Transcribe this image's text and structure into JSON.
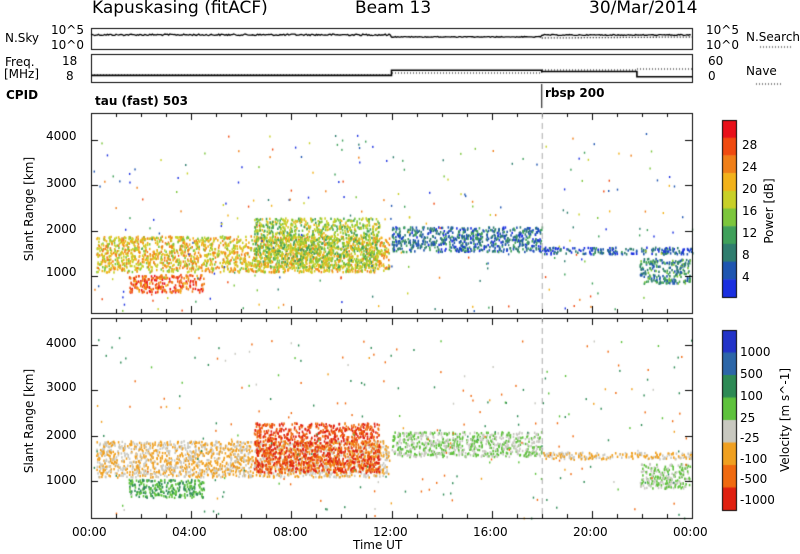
{
  "header": {
    "station": "Kapuskasing (fitACF)",
    "beam": "Beam 13",
    "date": "30/Mar/2014"
  },
  "top_panels": {
    "nsky_label": "N.Sky",
    "nsky_ticks": [
      "10^5",
      "10^0"
    ],
    "nsearch_label": "N.Search",
    "nsearch_ticks": [
      "10^5",
      "10^0"
    ],
    "freq_label": "Freq.",
    "freq_unit": "[MHz]",
    "freq_ticks": [
      "18",
      "8"
    ],
    "nave_label": "Nave",
    "nave_ticks": [
      "60",
      "0"
    ],
    "cpid_label": "CPID",
    "cpid_1": "tau (fast) 503",
    "cpid_2": "rbsp 200"
  },
  "axes": {
    "ylabel": "Slant Range [km]",
    "xlabel": "Time UT",
    "yticks": [
      "4000",
      "3000",
      "2000",
      "1000"
    ],
    "xticks": [
      "00:00",
      "04:00",
      "08:00",
      "12:00",
      "16:00",
      "20:00",
      "00:00"
    ]
  },
  "power_colorbar": {
    "label": "Power [dB]",
    "ticks": [
      "28",
      "24",
      "20",
      "16",
      "12",
      "8",
      "4"
    ],
    "colors": [
      "#e8101a",
      "#f04a10",
      "#f07f18",
      "#f2b21a",
      "#c8d028",
      "#7cc63c",
      "#3fa05a",
      "#2f7d6e",
      "#1e55b0",
      "#1a2fe0"
    ]
  },
  "velocity_colorbar": {
    "label": "Velocity [m s^-1]",
    "ticks": [
      "1000",
      "500",
      "100",
      "25",
      "-25",
      "-100",
      "-500",
      "-1000"
    ],
    "colors": [
      "#2233c8",
      "#2c66a8",
      "#2d8a55",
      "#5ec23c",
      "#c8c8c0",
      "#f0a020",
      "#f06a10",
      "#e02010"
    ]
  },
  "chart_data": {
    "type": "heatmap",
    "title": "Kapuskasing (fitACF) Beam 13 30/Mar/2014",
    "xlabel": "Time UT",
    "ylabel": "Slant Range [km]",
    "xlim": [
      0,
      24
    ],
    "ylim": [
      180,
      4600
    ],
    "xticks": [
      "00:00",
      "04:00",
      "08:00",
      "12:00",
      "16:00",
      "20:00",
      "00:00"
    ],
    "yticks": [
      1000,
      2000,
      3000,
      4000
    ],
    "frequency": {
      "unit": "MHz",
      "segments": [
        {
          "start": 0,
          "end": 12,
          "value": 10
        },
        {
          "start": 12,
          "end": 18,
          "value": 14
        },
        {
          "start": 18,
          "end": 21.8,
          "value": 13
        },
        {
          "start": 21.8,
          "end": 24,
          "value": 9
        }
      ]
    },
    "cpid": [
      {
        "start": 0,
        "label": "tau (fast) 503"
      },
      {
        "start": 18,
        "label": "rbsp 200"
      }
    ],
    "echo_regions": [
      {
        "name": "main band",
        "start": 0.2,
        "end": 11.9,
        "range_min": 1100,
        "range_max": 1900,
        "power_db": 20,
        "velocity": -25
      },
      {
        "name": "lower band",
        "start": 1.5,
        "end": 4.5,
        "range_min": 650,
        "range_max": 1050,
        "power_db": 26,
        "velocity": 100
      },
      {
        "name": "arc",
        "start": 6.5,
        "end": 11.5,
        "range_min": 1200,
        "range_max": 2300,
        "power_db": 16,
        "velocity": -500
      },
      {
        "name": "band after 12",
        "start": 12.0,
        "end": 18.0,
        "range_min": 1550,
        "range_max": 2100,
        "power_db": 8,
        "velocity": 25
      },
      {
        "name": "late band",
        "start": 18.0,
        "end": 24.0,
        "range_min": 1500,
        "range_max": 1650,
        "power_db": 6,
        "velocity": -25
      },
      {
        "name": "late low",
        "start": 21.9,
        "end": 23.9,
        "range_min": 850,
        "range_max": 1400,
        "power_db": 10,
        "velocity": 25
      }
    ]
  }
}
